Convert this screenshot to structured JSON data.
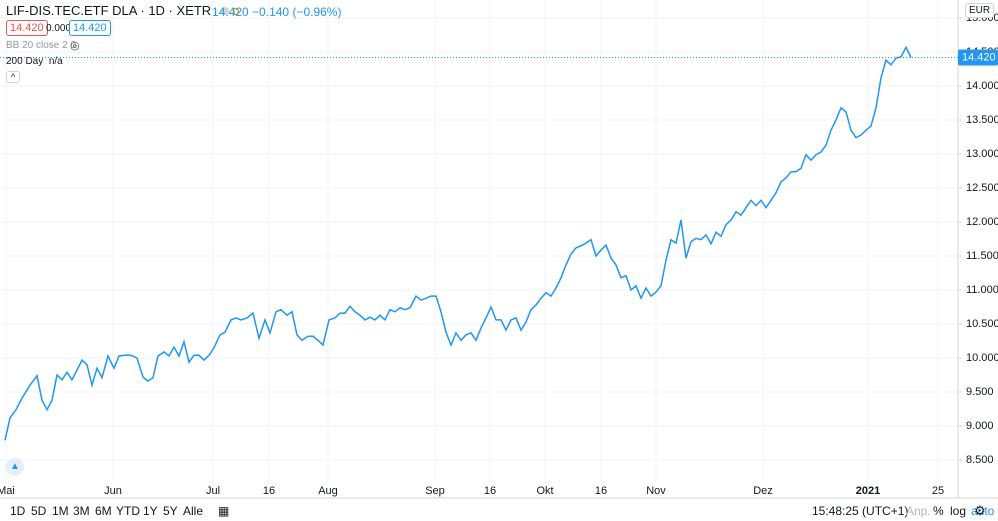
{
  "header": {
    "symbol": "LIF-DIS.TEC.ETF DLA",
    "interval": "1D",
    "exchange": "XETR",
    "badge": "D",
    "last": "14.420",
    "change": "−0.140",
    "change_pct": "(−0.96%)",
    "bid": "14.420",
    "spread": "0.000",
    "ask": "14.420",
    "indicator1": "BB 20 close 2 0",
    "indicator2_name": "200 Day",
    "indicator2_value": "n/a"
  },
  "chart_data": {
    "type": "line",
    "color": "#2196f3",
    "grid": true,
    "currency": "EUR",
    "x": [
      1,
      2,
      3.2,
      4.4,
      6,
      7.4,
      8.4,
      9.4,
      10.4,
      11.4,
      12.4,
      13.4,
      14.4,
      16.4,
      17.4,
      18.4,
      19.4,
      20.4,
      21.6,
      22.8,
      23.8,
      25,
      26.2,
      27.4,
      28.6,
      29.6,
      30.6,
      31.6,
      32.8,
      33.8,
      34.8,
      35.8,
      36.8,
      37.8,
      38.8,
      39.8,
      40.8,
      41.8,
      42.8,
      44,
      45,
      46.2,
      47.2,
      48.2,
      49.4,
      50.6,
      51.8,
      53,
      54,
      55.2,
      56.2,
      57.4,
      58.4,
      59.4,
      60.4,
      61.6,
      62.6,
      63.6,
      64.6,
      65.8,
      67,
      68,
      69,
      70,
      71,
      72,
      73,
      74,
      75,
      76,
      77,
      78,
      79,
      80,
      81,
      82,
      83.2,
      84.2,
      85.2,
      86.2,
      87.2,
      88.2,
      89.2,
      90.2,
      91.2,
      92.2,
      93.2,
      94.2,
      95.2,
      96.2,
      97.2,
      98.2,
      99.2,
      100.2,
      101.2,
      102.2,
      103.2,
      104.2,
      105.2,
      106.2,
      107.2,
      108.2,
      109.2,
      110.2,
      111.2,
      112.2,
      113.2,
      114.2,
      115.2,
      116.2,
      117.2,
      118.2,
      119.2,
      120.2,
      121.2,
      122.2,
      123.2,
      124.2,
      125.2,
      126.2,
      127.2,
      128.2,
      129.2,
      130.2,
      131.2,
      132.2,
      133.2,
      134.2,
      135.2,
      136.2,
      137.2,
      138.2,
      139.2,
      140.2,
      141.2,
      142.2,
      143.2,
      144.2,
      145.2,
      146.2,
      147.2,
      148.2,
      149.2,
      150.2,
      151.2,
      152.2,
      153.2,
      154.2,
      155.2,
      156.2,
      157.2,
      158.2,
      159.2,
      160.2,
      161.2,
      162.2,
      163.2,
      164.2,
      165.2,
      166.2,
      167.2,
      168.2,
      169.2,
      170.2,
      171.2,
      172.2,
      173.2,
      174.2,
      175.2,
      176.2,
      177.2,
      178.2,
      179.2,
      180.2,
      181.2,
      182.2
    ],
    "values": [
      8.79,
      9.12,
      9.24,
      9.41,
      9.6,
      9.74,
      9.38,
      9.24,
      9.38,
      9.75,
      9.68,
      9.79,
      9.68,
      9.97,
      9.9,
      9.6,
      9.85,
      9.71,
      10.03,
      9.85,
      10.03,
      10.04,
      10.04,
      10.0,
      9.72,
      9.66,
      9.71,
      10.03,
      10.09,
      10.03,
      10.16,
      10.03,
      10.24,
      9.94,
      10.04,
      10.04,
      9.97,
      10.04,
      10.15,
      10.34,
      10.38,
      10.56,
      10.59,
      10.56,
      10.59,
      10.66,
      10.29,
      10.56,
      10.37,
      10.68,
      10.71,
      10.63,
      10.68,
      10.34,
      10.26,
      10.32,
      10.32,
      10.26,
      10.19,
      10.56,
      10.59,
      10.66,
      10.66,
      10.76,
      10.68,
      10.63,
      10.56,
      10.6,
      10.56,
      10.63,
      10.56,
      10.71,
      10.68,
      10.74,
      10.71,
      10.74,
      10.91,
      10.85,
      10.88,
      10.91,
      10.91,
      10.68,
      10.38,
      10.19,
      10.37,
      10.26,
      10.34,
      10.37,
      10.26,
      10.44,
      10.59,
      10.75,
      10.56,
      10.56,
      10.41,
      10.56,
      10.59,
      10.41,
      10.53,
      10.71,
      10.78,
      10.88,
      10.96,
      10.91,
      11.03,
      11.18,
      11.37,
      11.53,
      11.62,
      11.65,
      11.69,
      11.74,
      11.5,
      11.59,
      11.66,
      11.47,
      11.37,
      11.18,
      11.21,
      11.0,
      11.06,
      10.88,
      11.03,
      10.91,
      10.97,
      11.06,
      11.44,
      11.74,
      11.69,
      12.03,
      11.47,
      11.71,
      11.76,
      11.74,
      11.81,
      11.68,
      11.85,
      11.79,
      11.96,
      12.03,
      12.15,
      12.1,
      12.21,
      12.32,
      12.24,
      12.32,
      12.21,
      12.32,
      12.43,
      12.59,
      12.65,
      12.74,
      12.74,
      12.79,
      12.99,
      12.91,
      12.99,
      13.03,
      13.13,
      13.35,
      13.5,
      13.68,
      13.62,
      13.35,
      13.24,
      13.28,
      13.35,
      13.41,
      13.68,
      14.12,
      14.38,
      14.31,
      14.41,
      14.43,
      14.57,
      14.42
    ],
    "last_price": {
      "value": 14.42,
      "label": "14.420"
    },
    "xlim": [
      0,
      191.6
    ],
    "xticks": [
      {
        "value": 1.2,
        "label": "Mai"
      },
      {
        "value": 22.6,
        "label": "Jun"
      },
      {
        "value": 42.6,
        "label": "Jul"
      },
      {
        "value": 53.8,
        "label": "16"
      },
      {
        "value": 65.6,
        "label": "Aug"
      },
      {
        "value": 87,
        "label": "Sep"
      },
      {
        "value": 98,
        "label": "16"
      },
      {
        "value": 109,
        "label": "Okt"
      },
      {
        "value": 120.2,
        "label": "16"
      },
      {
        "value": 131.2,
        "label": "Nov"
      },
      {
        "value": 152.6,
        "label": "Dez"
      },
      {
        "value": 173.6,
        "label": "2021"
      },
      {
        "value": 187.6,
        "label": "25"
      }
    ],
    "ylim": [
      8.162,
      15.265
    ],
    "yticks": [
      {
        "value": 8.5,
        "label": "8.500"
      },
      {
        "value": 9,
        "label": "9.000"
      },
      {
        "value": 9.5,
        "label": "9.500"
      },
      {
        "value": 10,
        "label": "10.000"
      },
      {
        "value": 10.5,
        "label": "10.500"
      },
      {
        "value": 11,
        "label": "11.000"
      },
      {
        "value": 11.5,
        "label": "11.500"
      },
      {
        "value": 12,
        "label": "12.000"
      },
      {
        "value": 12.5,
        "label": "12.500"
      },
      {
        "value": 13,
        "label": "13.000"
      },
      {
        "value": 13.5,
        "label": "13.500"
      },
      {
        "value": 14,
        "label": "14.000"
      },
      {
        "value": 14.5,
        "label": "14.500"
      },
      {
        "value": 15,
        "label": "15.000"
      }
    ]
  },
  "toolbar": {
    "ranges": [
      "1D",
      "5D",
      "1M",
      "3M",
      "6M",
      "YTD",
      "1Y",
      "5Y",
      "Alle"
    ],
    "time": "15:48:25 (UTC+1)",
    "options": [
      "Anp.",
      "%",
      "log",
      "auto"
    ]
  }
}
